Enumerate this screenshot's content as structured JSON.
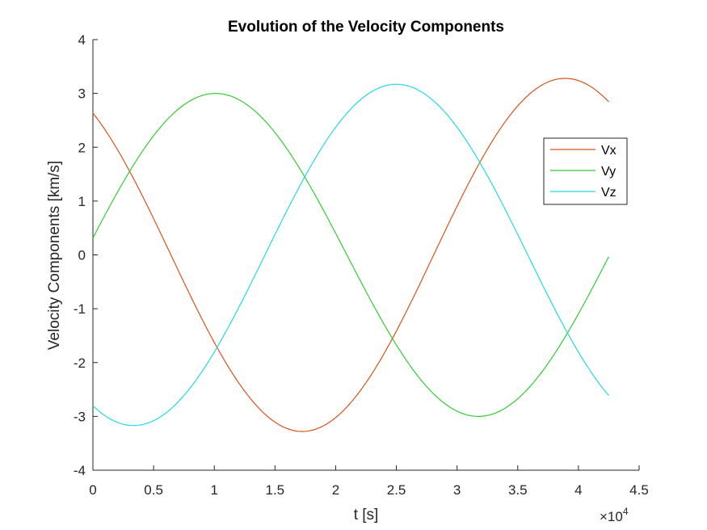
{
  "chart_data": {
    "type": "line",
    "title": "Evolution of the Velocity Components",
    "xlabel": "t [s]",
    "ylabel": "Velocity Components [km/s]",
    "x_exponent_label": "×10",
    "x_exponent_power": "4",
    "x_tick_labels": [
      "0",
      "0.5",
      "1",
      "1.5",
      "2",
      "2.5",
      "3",
      "3.5",
      "4",
      "4.5"
    ],
    "y_tick_labels": [
      "-4",
      "-3",
      "-2",
      "-1",
      "0",
      "1",
      "2",
      "3",
      "4"
    ],
    "xlim": [
      0,
      45000
    ],
    "ylim": [
      -4,
      4
    ],
    "grid": false,
    "legend_position": "top-right",
    "x_range": [
      0,
      42500
    ],
    "series": [
      {
        "name": "Vx",
        "color": "#d95319",
        "amplitude": 3.28,
        "period": 43300,
        "phase_time": 38900,
        "x": [
          0,
          5000,
          10000,
          17300,
          25000,
          30000,
          38900,
          42500
        ],
        "values": [
          2.63,
          0.9,
          -1.55,
          -3.28,
          -1.55,
          0.5,
          3.28,
          2.8
        ]
      },
      {
        "name": "Vy",
        "color": "#33cc33",
        "amplitude": 3.0,
        "period": 43300,
        "phase_time": 10100,
        "x": [
          0,
          5000,
          10100,
          17300,
          25000,
          31750,
          38000,
          42500
        ],
        "values": [
          0.35,
          2.2,
          3.0,
          1.5,
          -1.6,
          -3.0,
          -1.6,
          0.08
        ]
      },
      {
        "name": "Vz",
        "color": "#22d8e8",
        "amplitude": 3.17,
        "period": 43300,
        "phase_time": 25000,
        "x": [
          0,
          3400,
          10000,
          17300,
          25000,
          32000,
          38000,
          42500
        ],
        "values": [
          -2.8,
          -3.17,
          -1.7,
          1.4,
          3.17,
          1.8,
          -1.3,
          -2.65
        ]
      }
    ]
  }
}
